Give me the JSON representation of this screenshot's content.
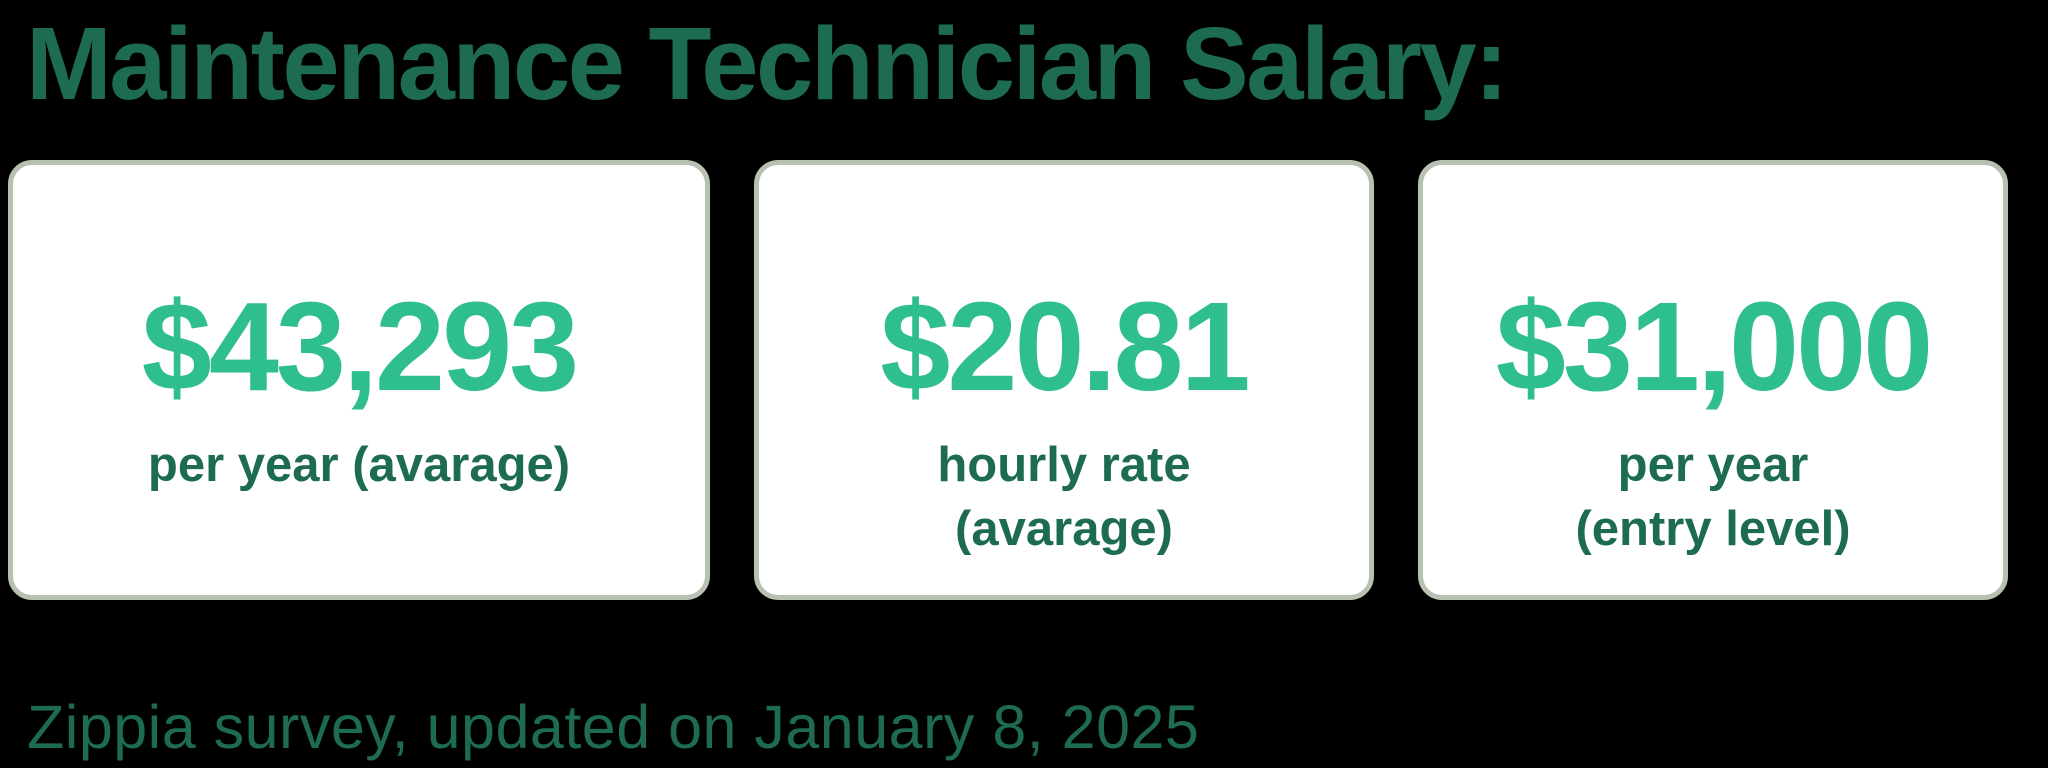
{
  "title": "Maintenance Technician Salary:",
  "footer": "Zippia survey, updated on January 8, 2025",
  "cards": [
    {
      "value": "$43,293",
      "label_lines": [
        "per year (avarage)"
      ]
    },
    {
      "value": "$20.81",
      "label_lines": [
        "hourly rate",
        "(avarage)"
      ]
    },
    {
      "value": "$31,000",
      "label_lines": [
        "per year",
        "(entry level)"
      ]
    }
  ],
  "colors": {
    "background": "#000000",
    "title_text": "#1d6b52",
    "value_accent": "#2fbe8d",
    "label_text": "#1d6b52",
    "card_background": "#ffffff",
    "card_border": "#b6c1b2",
    "footer_text": "#1d6b52"
  },
  "chart_data": {
    "type": "table",
    "title": "Maintenance Technician Salary:",
    "columns": [
      "metric",
      "value"
    ],
    "rows": [
      [
        "per year (avarage)",
        "$43,293"
      ],
      [
        "hourly rate (avarage)",
        "$20.81"
      ],
      [
        "per year (entry level)",
        "$31,000"
      ]
    ],
    "values_numeric": [
      43293,
      20.81,
      31000
    ],
    "source": "Zippia survey, updated on January 8, 2025",
    "layout": "three stat cards in a row, title above, source below"
  }
}
